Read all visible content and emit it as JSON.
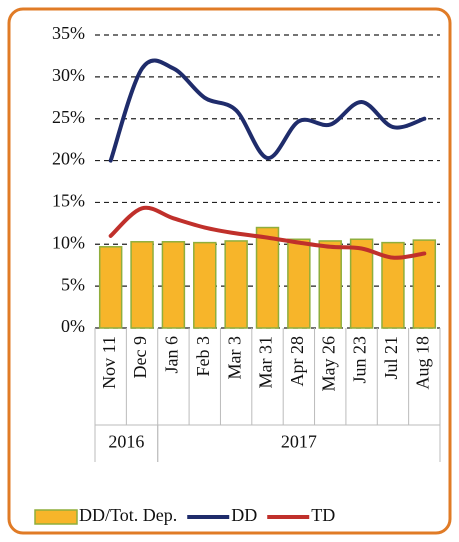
{
  "chart_data": {
    "type": "bar",
    "categories": [
      "Nov 11",
      "Dec 9",
      "Jan 6",
      "Feb 3",
      "Mar 3",
      "Mar 31",
      "Apr 28",
      "May 26",
      "Jun 23",
      "Jul 21",
      "Aug 18"
    ],
    "categories_outer": [
      "2016",
      null,
      "2017",
      null,
      null,
      null,
      null,
      null,
      null,
      null,
      null
    ],
    "series": [
      {
        "name": "DD/Tot. Dep.",
        "type": "bar",
        "color": "#f7b52a",
        "values": [
          9.7,
          10.3,
          10.3,
          10.2,
          10.4,
          12,
          10.6,
          10.4,
          10.6,
          10.2,
          10.5
        ]
      },
      {
        "name": "DD",
        "type": "line",
        "color": "#1f2c6b",
        "values": [
          20,
          31,
          31,
          27.5,
          26,
          20.3,
          24.7,
          24.3,
          27,
          24,
          25
        ]
      },
      {
        "name": "TD",
        "type": "line",
        "color": "#c0302b",
        "values": [
          11,
          14.3,
          13.1,
          12,
          11.3,
          10.8,
          10.2,
          9.7,
          9.5,
          8.4,
          8.9
        ]
      }
    ],
    "ylim": [
      0,
      35
    ],
    "yticks": [
      {
        "value": 0,
        "label": "0%"
      },
      {
        "value": 5,
        "label": "5%"
      },
      {
        "value": 10,
        "label": "10%"
      },
      {
        "value": 15,
        "label": "15%"
      },
      {
        "value": 20,
        "label": "20%"
      },
      {
        "value": 25,
        "label": "25%"
      },
      {
        "value": 30,
        "label": "30%"
      },
      {
        "value": 35,
        "label": "35%"
      }
    ],
    "grid": true,
    "legend": "bottom"
  }
}
